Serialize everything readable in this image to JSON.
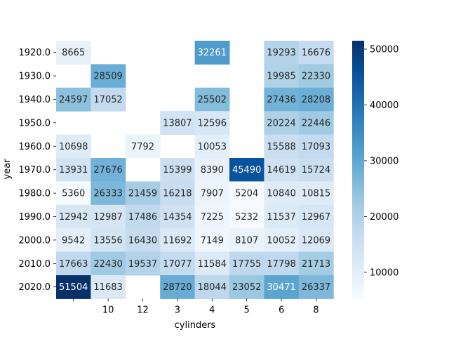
{
  "chart_data": {
    "type": "heatmap",
    "xlabel": "cylinders",
    "ylabel": "year",
    "x_categories": [
      "",
      "10",
      "12",
      "3",
      "4",
      "5",
      "6",
      "8"
    ],
    "y_categories": [
      "1920.0",
      "1930.0",
      "1940.0",
      "1950.0",
      "1960.0",
      "1970.0",
      "1980.0",
      "1990.0",
      "2000.0",
      "2010.0",
      "2020.0"
    ],
    "values": [
      [
        8665,
        null,
        null,
        null,
        32261,
        null,
        19293,
        16676
      ],
      [
        null,
        28509,
        null,
        null,
        null,
        null,
        19985,
        22330
      ],
      [
        24597,
        17052,
        null,
        null,
        25502,
        null,
        27436,
        28208
      ],
      [
        null,
        null,
        null,
        13807,
        12596,
        null,
        20224,
        22446
      ],
      [
        10698,
        null,
        7792,
        null,
        10053,
        null,
        15588,
        17093
      ],
      [
        13931,
        27676,
        null,
        15399,
        8390,
        45490,
        14619,
        15724
      ],
      [
        5360,
        26333,
        21459,
        16218,
        7907,
        5204,
        10840,
        10815
      ],
      [
        12942,
        12987,
        17486,
        14354,
        7225,
        5232,
        11537,
        12967
      ],
      [
        9542,
        13556,
        16430,
        11692,
        7149,
        8107,
        10052,
        12069
      ],
      [
        17663,
        22430,
        19537,
        17077,
        11584,
        17755,
        17798,
        21713
      ],
      [
        51504,
        11683,
        null,
        28720,
        18044,
        23052,
        30471,
        26337
      ]
    ],
    "color_scale": {
      "name": "Blues",
      "min": 5204,
      "max": 51504,
      "ticks": [
        10000,
        20000,
        30000,
        40000,
        50000
      ]
    }
  }
}
